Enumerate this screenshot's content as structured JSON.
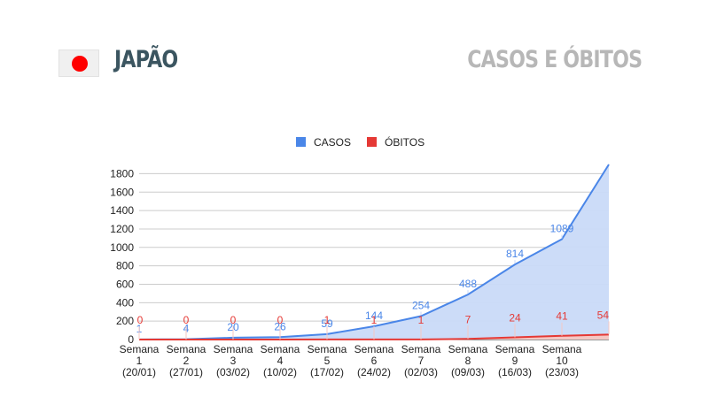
{
  "header": {
    "country": "JAPÃO",
    "section_title": "CASOS E ÓBITOS"
  },
  "colors": {
    "casos": "#4a86e8",
    "obitos": "#e53935",
    "casos_fill": "#c9daf8",
    "obitos_fill": "#f4c7c3",
    "flag_disc": "#ff0000"
  },
  "chart_data": {
    "type": "area",
    "legend_position": "top",
    "grid": true,
    "ylim": [
      0,
      1900
    ],
    "y_ticks": [
      "0",
      "200",
      "400",
      "600",
      "800",
      "1000",
      "1200",
      "1400",
      "1600",
      "1800"
    ],
    "categories": [
      [
        "Semana",
        "1",
        "(20/01)"
      ],
      [
        "Semana",
        "2",
        "(27/01)"
      ],
      [
        "Semana",
        "3",
        "(03/02)"
      ],
      [
        "Semana",
        "4",
        "(10/02)"
      ],
      [
        "Semana",
        "5",
        "(17/02)"
      ],
      [
        "Semana",
        "6",
        "(24/02)"
      ],
      [
        "Semana",
        "7",
        "(02/03)"
      ],
      [
        "Semana",
        "8",
        "(09/03)"
      ],
      [
        "Semana",
        "9",
        "(16/03)"
      ],
      [
        "Semana",
        "10",
        "(23/03)"
      ],
      [
        "",
        "",
        ""
      ]
    ],
    "series": [
      {
        "name": "CASOS",
        "values": [
          1,
          4,
          20,
          26,
          59,
          144,
          254,
          488,
          814,
          1089,
          1900
        ],
        "labels": [
          "1",
          "4",
          "20",
          "26",
          "59",
          "144",
          "254",
          "488",
          "814",
          "1089",
          ""
        ]
      },
      {
        "name": "ÓBITOS",
        "values": [
          0,
          0,
          0,
          0,
          1,
          1,
          1,
          7,
          24,
          41,
          54
        ],
        "labels": [
          "0",
          "0",
          "0",
          "0",
          "1",
          "1",
          "1",
          "7",
          "24",
          "41",
          "54"
        ]
      }
    ]
  }
}
